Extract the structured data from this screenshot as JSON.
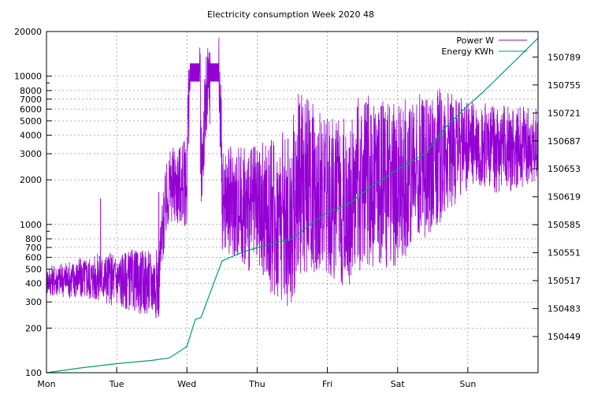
{
  "chart_data": {
    "type": "line",
    "title": "Electricity consumption Week 2020 48",
    "x_ticks": [
      "Mon",
      "Tue",
      "Wed",
      "Thu",
      "Fri",
      "Sat",
      "Sun"
    ],
    "x_range_days": [
      0,
      7
    ],
    "y_left": {
      "scale": "log",
      "range": [
        100,
        20000
      ],
      "ticks": [
        100,
        200,
        300,
        400,
        500,
        600,
        700,
        800,
        1000,
        2000,
        3000,
        4000,
        5000,
        6000,
        7000,
        8000,
        10000,
        20000
      ]
    },
    "y_right": {
      "scale": "linear",
      "range": [
        150405,
        150820
      ],
      "ticks": [
        150449,
        150483,
        150517,
        150551,
        150585,
        150619,
        150653,
        150687,
        150721,
        150755,
        150789
      ]
    },
    "grid": true,
    "legend_position": "top-right",
    "series": [
      {
        "name": "Power W",
        "color": "#9400d3",
        "axis": "left",
        "anchors": [
          [
            0.0,
            420
          ],
          [
            0.4,
            430
          ],
          [
            0.8,
            440
          ],
          [
            1.2,
            420
          ],
          [
            1.6,
            400
          ],
          [
            1.75,
            1800
          ],
          [
            2.0,
            1900
          ],
          [
            2.05,
            11000
          ],
          [
            2.18,
            11000
          ],
          [
            2.2,
            1800
          ],
          [
            2.35,
            11000
          ],
          [
            2.45,
            11000
          ],
          [
            2.5,
            1500
          ],
          [
            3.0,
            1200
          ],
          [
            3.5,
            1100
          ],
          [
            3.6,
            2000
          ],
          [
            4.0,
            1500
          ],
          [
            4.3,
            1400
          ],
          [
            4.5,
            2000
          ],
          [
            5.0,
            1800
          ],
          [
            5.5,
            2800
          ],
          [
            6.0,
            3400
          ],
          [
            6.5,
            3200
          ],
          [
            6.9,
            3400
          ],
          [
            7.0,
            3500
          ]
        ],
        "band_anchors": [
          [
            0.0,
            0.1
          ],
          [
            1.7,
            0.25
          ],
          [
            2.0,
            0.3
          ],
          [
            2.5,
            0.35
          ],
          [
            3.0,
            0.45
          ],
          [
            3.5,
            0.65
          ],
          [
            4.0,
            0.55
          ],
          [
            4.5,
            0.6
          ],
          [
            5.0,
            0.55
          ],
          [
            5.5,
            0.5
          ],
          [
            6.0,
            0.3
          ],
          [
            6.5,
            0.3
          ],
          [
            7.0,
            0.25
          ]
        ],
        "spikes": [
          [
            0.77,
            1500
          ],
          [
            1.6,
            1650
          ],
          [
            1.45,
            330
          ]
        ]
      },
      {
        "name": "Energy KWh",
        "color": "#009e73",
        "axis": "right",
        "values": [
          [
            0.0,
            150405
          ],
          [
            0.5,
            150411
          ],
          [
            1.0,
            150416
          ],
          [
            1.5,
            150420
          ],
          [
            1.75,
            150423
          ],
          [
            2.0,
            150437
          ],
          [
            2.12,
            150470
          ],
          [
            2.2,
            150472
          ],
          [
            2.5,
            150541
          ],
          [
            2.8,
            150552
          ],
          [
            3.2,
            150562
          ],
          [
            3.5,
            150568
          ],
          [
            3.8,
            150588
          ],
          [
            4.0,
            150600
          ],
          [
            4.3,
            150610
          ],
          [
            4.6,
            150630
          ],
          [
            5.0,
            150652
          ],
          [
            5.4,
            150672
          ],
          [
            5.7,
            150705
          ],
          [
            6.0,
            150730
          ],
          [
            6.2,
            150745
          ],
          [
            6.5,
            150770
          ],
          [
            6.8,
            150795
          ],
          [
            7.0,
            150812
          ]
        ]
      }
    ]
  }
}
